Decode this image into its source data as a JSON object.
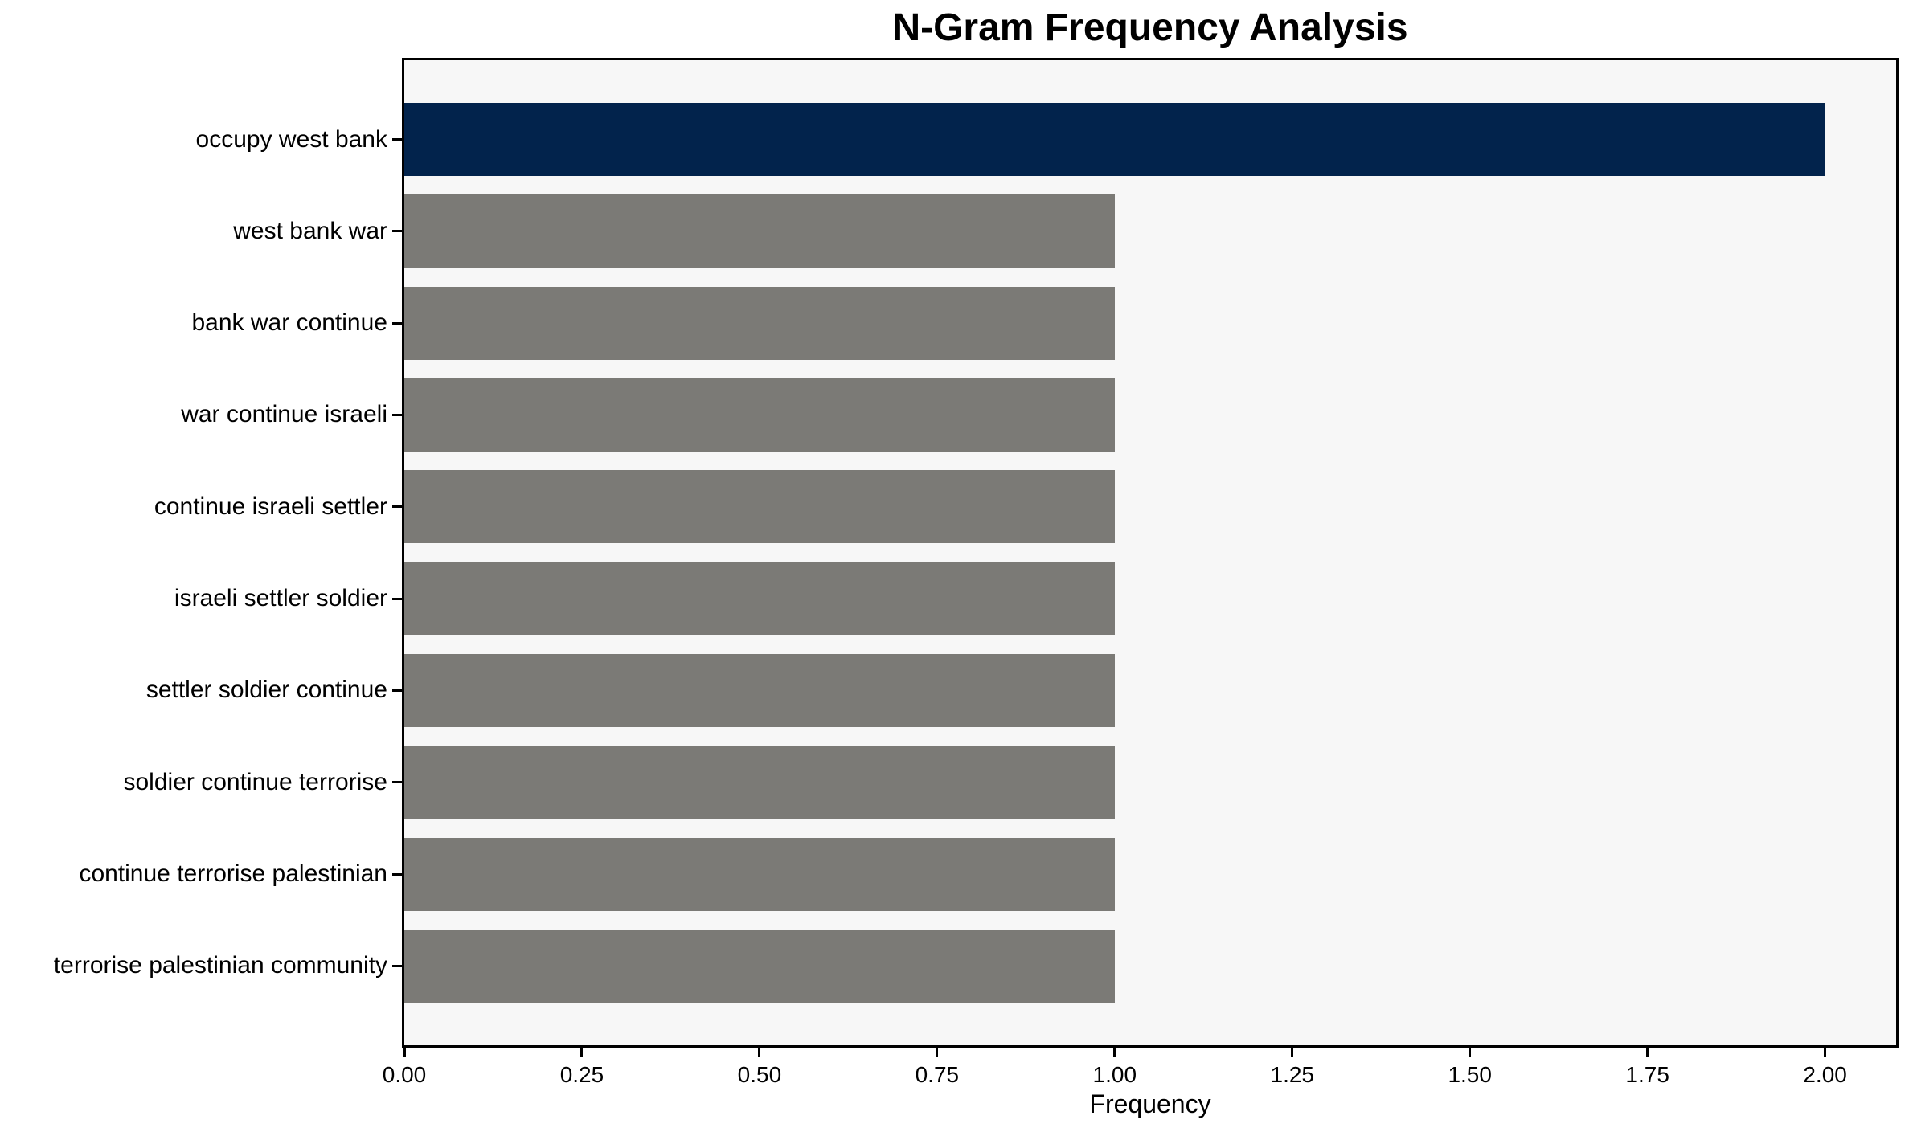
{
  "figure": {
    "background": "#ffffff",
    "plot_background": "#f7f7f7",
    "spine_color": "#000000",
    "text_color": "#000000"
  },
  "chart_data": {
    "type": "bar",
    "orientation": "horizontal",
    "title": "N-Gram Frequency Analysis",
    "xlabel": "Frequency",
    "ylabel": "",
    "categories": [
      "occupy west bank",
      "west bank war",
      "bank war continue",
      "war continue israeli",
      "continue israeli settler",
      "israeli settler soldier",
      "settler soldier continue",
      "soldier continue terrorise",
      "continue terrorise palestinian",
      "terrorise palestinian community"
    ],
    "values": [
      2,
      1,
      1,
      1,
      1,
      1,
      1,
      1,
      1,
      1
    ],
    "bar_colors": [
      "#02234c",
      "#7b7a76",
      "#7b7a76",
      "#7b7a76",
      "#7b7a76",
      "#7b7a76",
      "#7b7a76",
      "#7b7a76",
      "#7b7a76",
      "#7b7a76"
    ],
    "highlight_color": "#02234c",
    "default_color": "#7b7a76",
    "xlim": [
      0,
      2.1
    ],
    "x_ticks": [
      0.0,
      0.25,
      0.5,
      0.75,
      1.0,
      1.25,
      1.5,
      1.75,
      2.0
    ],
    "x_tick_labels": [
      "0.00",
      "0.25",
      "0.50",
      "0.75",
      "1.00",
      "1.25",
      "1.50",
      "1.75",
      "2.00"
    ],
    "grid": false,
    "legend": null
  }
}
